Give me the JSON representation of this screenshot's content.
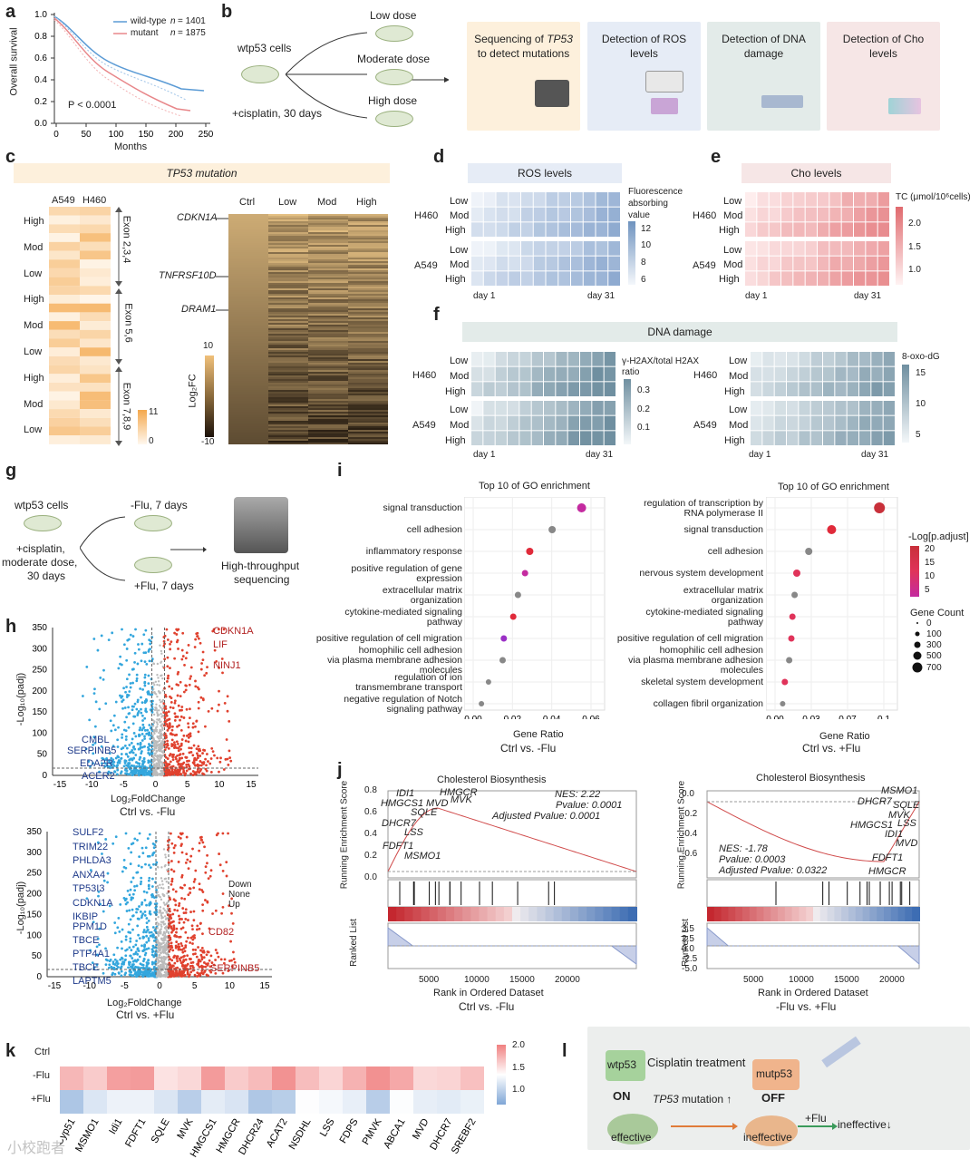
{
  "panel_a": {
    "letter": "a",
    "ylabel": "Overall survival",
    "xlabel": "Months",
    "legend": [
      {
        "name": "wild-type",
        "n_label": "n",
        "n": "= 1401",
        "color": "#5b9bd5"
      },
      {
        "name": "mutant",
        "n_label": "n",
        "n": "= 1875",
        "color": "#e8878a"
      }
    ],
    "pvalue": "P < 0.0001",
    "xticks": [
      "0",
      "50",
      "100",
      "150",
      "200",
      "250"
    ],
    "yticks": [
      "0.0",
      "0.2",
      "0.4",
      "0.6",
      "0.8",
      "1.0"
    ]
  },
  "panel_b": {
    "letter": "b",
    "cells": "wtp53 cells",
    "treatment": "+cisplatin, 30 days",
    "doses": [
      "Low dose",
      "Moderate dose",
      "High dose"
    ],
    "boxes": [
      {
        "text1": "Sequencing of",
        "gene": "TP53",
        "text2": "to detect mutations",
        "color": "#fdf0dc"
      },
      {
        "text1": "Detection of ROS",
        "text2": "levels",
        "color": "#e6ecf6"
      },
      {
        "text1": "Detection of DNA",
        "text2": "damage",
        "color": "#e3ebe9"
      },
      {
        "text1": "Detection of Cho",
        "text2": "levels",
        "color": "#f6e6e6"
      }
    ]
  },
  "panel_c": {
    "letter": "c",
    "title": "TP53 mutation",
    "cols": [
      "A549",
      "H460"
    ],
    "rows": [
      "High",
      "Mod",
      "Low",
      "High",
      "Mod",
      "Low",
      "High",
      "Mod",
      "Low"
    ],
    "exons": [
      "Exon 2,3,4",
      "Exon 5,6",
      "Exon 7,8,9"
    ],
    "scale": [
      "11",
      "0"
    ],
    "heat_cols": [
      "Ctrl",
      "Low",
      "Mod",
      "High"
    ],
    "genes": [
      "CDKN1A",
      "TNFRSF10D",
      "DRAM1"
    ],
    "fc_label": "Log₂FC",
    "fc_scale": [
      "10",
      "-10"
    ]
  },
  "panel_d": {
    "letter": "d",
    "title": "ROS levels",
    "scale_title": [
      "Fluorescence",
      "absorbing",
      "value"
    ],
    "scale": [
      "12",
      "10",
      "8",
      "6"
    ],
    "groups": [
      "H460",
      "A549"
    ],
    "rows": [
      "Low",
      "Mod",
      "High"
    ],
    "x": [
      "day 1",
      "day 31"
    ]
  },
  "panel_e": {
    "letter": "e",
    "title": "Cho levels",
    "scale_title": "TC (μmol/10⁶cells)",
    "scale": [
      "2.0",
      "1.5",
      "1.0"
    ],
    "groups": [
      "H460",
      "A549"
    ],
    "rows": [
      "Low",
      "Mod",
      "High"
    ],
    "x": [
      "day 1",
      "day 31"
    ]
  },
  "panel_f": {
    "letter": "f",
    "title": "DNA  damage",
    "left_scale_title": [
      "γ-H2AX/total H2AX",
      "ratio"
    ],
    "left_scale": [
      "0.3",
      "0.2",
      "0.1"
    ],
    "right_scale_title": "8-oxo-dG",
    "right_scale": [
      "15",
      "10",
      "5"
    ],
    "groups": [
      "H460",
      "A549"
    ],
    "rows": [
      "Low",
      "Mod",
      "High"
    ],
    "x": [
      "day 1",
      "day 31"
    ]
  },
  "panel_g": {
    "letter": "g",
    "cells": "wtp53 cells",
    "treatment": [
      "+cisplatin,",
      "moderate dose,",
      "30 days"
    ],
    "arms": [
      "-Flu, 7 days",
      "+Flu, 7 days"
    ],
    "seq": [
      "High-throughput",
      "sequencing"
    ]
  },
  "panel_h": {
    "letter": "h",
    "top": {
      "ylabel": "-Log₁₀(padj)",
      "xlabel": "Log₂FoldChange",
      "caption": "Ctrl vs. -Flu",
      "up_genes": [
        "CDKN1A",
        "LIF",
        "NINJ1"
      ],
      "down_genes": [
        "CMBL",
        "SERPINB5",
        "EDA2R",
        "ACER2"
      ],
      "yticks": [
        "0",
        "50",
        "100",
        "150",
        "200",
        "250",
        "300",
        "350"
      ],
      "xticks": [
        "-15",
        "-10",
        "-5",
        "0",
        "5",
        "10",
        "15"
      ]
    },
    "bottom": {
      "ylabel": "-Log₁₀(padj)",
      "xlabel": "Log₂FoldChange",
      "caption": "Ctrl vs. +Flu",
      "up_genes": [
        "CD82",
        "SERPINB5"
      ],
      "down_genes": [
        "SULF2",
        "TRIM22",
        "PHLDA3",
        "ANXA4",
        "TP53I3",
        "CDKN1A",
        "IKBIP",
        "PPM1D",
        "TBCE",
        "PTP4A1",
        "TBCE",
        "LAPTM5"
      ],
      "legend": [
        "Down",
        "None",
        "Up"
      ],
      "yticks": [
        "0",
        "50",
        "100",
        "150",
        "200",
        "250",
        "300",
        "350"
      ],
      "xticks": [
        "-15",
        "-10",
        "-5",
        "0",
        "5",
        "10",
        "15"
      ]
    }
  },
  "panel_i": {
    "letter": "i",
    "left": {
      "title": "Top 10 of GO enrichment",
      "terms": [
        "signal transduction",
        "cell adhesion",
        "inflammatory response",
        "positive regulation of gene|expression",
        "extracellular matrix|organization",
        "cytokine-mediated signaling|pathway",
        "positive regulation of cell migration",
        "homophilic cell adhesion|via plasma membrane adhesion|molecules",
        "regulation of ion|transmembrane transport",
        "negative regulation of Notch|signaling pathway"
      ],
      "xlabel": "Gene Ratio",
      "xticks": [
        "0.00",
        "0.02",
        "0.04",
        "0.06"
      ],
      "caption": "Ctrl vs. -Flu"
    },
    "right": {
      "title": "Top 10 of GO enrichment",
      "terms": [
        "regulation of transcription by|RNA polymerase II",
        "signal transduction",
        "cell adhesion",
        "nervous system development",
        "extracellular matrix|organization",
        "cytokine-mediated signaling|pathway",
        "positive regulation of cell migration",
        "homophilic cell adhesion|via plasma membrane adhesion|molecules",
        "skeletal system development",
        "collagen fibril organization"
      ],
      "xlabel": "Gene Ratio",
      "xticks": [
        "0.00",
        "0.03",
        "0.07",
        "0.1"
      ],
      "caption": "Ctrl vs. +Flu"
    },
    "legend_color_title": "-Log[p.adjust]",
    "legend_color": [
      "20",
      "15",
      "10",
      "5"
    ],
    "legend_size_title": "Gene Count",
    "legend_size": [
      "0",
      "100",
      "300",
      "500",
      "700"
    ]
  },
  "panel_j": {
    "letter": "j",
    "left": {
      "title": "Cholesterol Biosynthesis",
      "nes": "NES: 2.22",
      "pvalue": "Pvalue: 0.0001",
      "adj": "Adjusted Pvalue: 0.0001",
      "genes": [
        "IDI1",
        "HMGCR",
        "HMGCS1",
        "MVD",
        "MVK",
        "SQLE",
        "DHCR7",
        "LSS",
        "FDFT1",
        "MSMO1"
      ],
      "yticks": [
        "0.8",
        "0.6",
        "0.4",
        "0.2",
        "0.0"
      ],
      "ranked_ticks": [],
      "xticks": [
        "5000",
        "10000",
        "15000",
        "20000"
      ],
      "xlabel": "Rank in Ordered Dataset",
      "caption": "Ctrl vs. -Flu"
    },
    "right": {
      "title": "Cholesterol Biosynthesis",
      "nes": "NES: -1.78",
      "pvalue": "Pvalue: 0.0003",
      "adj": "Adjusted Pvalue: 0.0322",
      "genes": [
        "MSMO1",
        "DHCR7",
        "SQLE",
        "MVK",
        "HMGCS1",
        "LSS",
        "IDI1",
        "MVD",
        "FDFT1",
        "HMGCR"
      ],
      "yticks": [
        "0.0",
        "-0.2",
        "-0.4",
        "-0.6"
      ],
      "ranked_ticks": [
        "3.5",
        "2.5",
        "0.0",
        "-2.5",
        "-5.0"
      ],
      "xticks": [
        "5000",
        "10000",
        "15000",
        "20000"
      ],
      "xlabel": "Rank in Ordered Dataset",
      "caption": "-Flu vs. +Flu"
    },
    "ylabel_top": "Running Enrichment Score",
    "ylabel_bottom": "Ranked List"
  },
  "panel_k": {
    "letter": "k",
    "rows": [
      "Ctrl",
      "-Flu",
      "+Flu"
    ],
    "cols": [
      "Cyp51",
      "MSMO1",
      "Idi1",
      "FDFT1",
      "SQLE",
      "MVK",
      "HMGCS1",
      "HMGCR",
      "DHCR24",
      "ACAT2",
      "NSDHL",
      "LSS",
      "FDPS",
      "PMVK",
      "ABCA1",
      "MVD",
      "DHCR7",
      "SREBF2"
    ],
    "scale": [
      "2.0",
      "1.5",
      "1.0"
    ]
  },
  "panel_l": {
    "letter": "l",
    "treatment": "Cisplatin treatment",
    "wt": "wtp53",
    "mut": "mutp53",
    "on": "ON",
    "off": "OFF",
    "mutation": "TP53",
    "mutation_text": "mutation",
    "effective": "effective",
    "ineffective": "ineffective",
    "flu": "+Flu",
    "ineffective_down": "ineffective↓",
    "arrow_up": "↑"
  },
  "watermark": "小校跑者"
}
